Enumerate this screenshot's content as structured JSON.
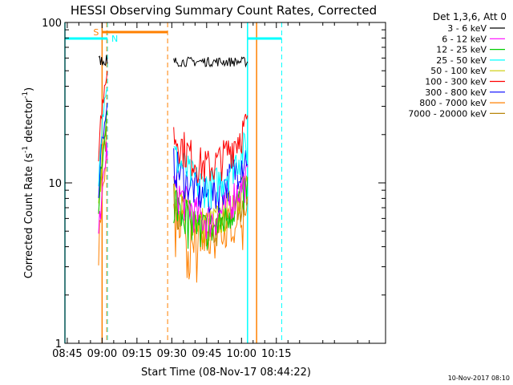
{
  "chart_data": {
    "type": "line",
    "title": "HESSI Observing Summary Count Rates, Corrected",
    "xlabel": "Start Time (08-Nov-17 08:44:22)",
    "ylabel_main": "Corrected Count Rate (s",
    "ylabel_sup1": "-1",
    "ylabel_mid": " detector",
    "ylabel_sup2": "-1",
    "ylabel_end": ")",
    "ylog": true,
    "ylim": [
      1,
      100
    ],
    "xlim_min": [
      524,
      662
    ],
    "x_tick_labels": [
      "08:45",
      "09:00",
      "09:15",
      "09:30",
      "09:45",
      "10:00",
      "10:15"
    ],
    "x_ticks_min": [
      525,
      540,
      555,
      570,
      585,
      600,
      615
    ],
    "y_tick_labels": [
      "1",
      "10",
      "100"
    ],
    "y_ticks": [
      1,
      10,
      100
    ],
    "grid": false,
    "legend_title": "Det 1,3,6, Att 0",
    "legend_position": "right",
    "timestamp": "10-Nov-2017 08:10",
    "series": [
      {
        "name": "3 - 6 keV",
        "color": "#000000"
      },
      {
        "name": "6 - 12 keV",
        "color": "#ff00ff"
      },
      {
        "name": "12 - 25 keV",
        "color": "#00cc00"
      },
      {
        "name": "25 - 50 keV",
        "color": "#00ffff"
      },
      {
        "name": "50 - 100 keV",
        "color": "#cccc00"
      },
      {
        "name": "100 - 300 keV",
        "color": "#ff0000"
      },
      {
        "name": "300 - 800 keV",
        "color": "#0000ff"
      },
      {
        "name": "800 - 7000 keV",
        "color": "#ff8000"
      },
      {
        "name": "7000 - 20000 keV",
        "color": "#b8860b"
      }
    ],
    "data_segments": [
      {
        "x": [
          538.5,
          542.3
        ],
        "levels": [
          58,
          5.2,
          8,
          12,
          7.5,
          16,
          10,
          4.5,
          7
        ]
      },
      {
        "x": [
          570.8,
          602.6
        ],
        "levels": [
          57,
          7.5,
          6.5,
          12,
          7,
          16,
          10.5,
          5.5,
          6.2
        ]
      }
    ],
    "annotations": {
      "saa_label": "S",
      "saa_color": "#ff8000",
      "saa_bar_min": [
        540,
        568.2
      ],
      "night_label": "N",
      "night_color": "#00ffff",
      "night_bars_min": [
        [
          524,
          542.3
        ],
        [
          602.6,
          617.3
        ]
      ],
      "saa_dashed_min": [
        542.0,
        568.2
      ],
      "night_dashed_min": [
        542.3,
        617.3
      ],
      "night_solid_min": [
        524,
        602.6
      ],
      "saa_solid_min": [
        540,
        606.5
      ]
    }
  }
}
